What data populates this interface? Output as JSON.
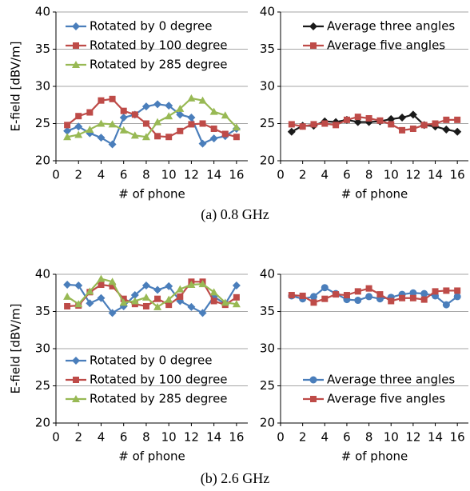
{
  "chart_data": [
    {
      "type": "line",
      "xlabel": "# of phone",
      "ylabel": "E-field [dBV/m]",
      "x": [
        1,
        2,
        3,
        4,
        5,
        6,
        7,
        8,
        9,
        10,
        11,
        12,
        13,
        14,
        15,
        16
      ],
      "xlim": [
        0,
        17
      ],
      "ylim": [
        20,
        40
      ],
      "xticks": [
        0,
        2,
        4,
        6,
        8,
        10,
        12,
        14,
        16
      ],
      "yticks": [
        20,
        25,
        30,
        35,
        40
      ],
      "grid": true,
      "legend": "upper left",
      "series": [
        {
          "name": "Rotated by 0 degree",
          "color": "#4a7ebb",
          "marker": "diamond",
          "values": [
            24.0,
            24.6,
            23.7,
            23.1,
            22.2,
            25.8,
            26.2,
            27.3,
            27.6,
            27.4,
            26.2,
            25.8,
            22.3,
            23.0,
            23.3,
            24.3
          ]
        },
        {
          "name": "Rotated by 100 degree",
          "color": "#be4b48",
          "marker": "square",
          "values": [
            24.8,
            26.0,
            26.5,
            28.1,
            28.3,
            26.7,
            26.2,
            25.0,
            23.3,
            23.2,
            24.0,
            24.9,
            25.0,
            24.3,
            23.6,
            23.2
          ]
        },
        {
          "name": "Rotated by 285 degree",
          "color": "#98b954",
          "marker": "triangle",
          "values": [
            23.2,
            23.5,
            24.2,
            25.0,
            24.9,
            24.1,
            23.4,
            23.2,
            25.2,
            26.0,
            27.0,
            28.4,
            28.1,
            26.6,
            26.1,
            24.5
          ]
        }
      ]
    },
    {
      "type": "line",
      "xlabel": "# of phone",
      "x": [
        1,
        2,
        3,
        4,
        5,
        6,
        7,
        8,
        9,
        10,
        11,
        12,
        13,
        14,
        15,
        16
      ],
      "xlim": [
        0,
        17
      ],
      "ylim": [
        20,
        40
      ],
      "xticks": [
        0,
        2,
        4,
        6,
        8,
        10,
        12,
        14,
        16
      ],
      "yticks": [
        20,
        25,
        30,
        35,
        40
      ],
      "grid": true,
      "legend": "upper right",
      "series": [
        {
          "name": "Average three angles",
          "color": "#1a1a1a",
          "marker": "diamond",
          "values": [
            23.9,
            24.7,
            24.7,
            25.3,
            25.2,
            25.5,
            25.2,
            25.2,
            25.3,
            25.6,
            25.8,
            26.2,
            24.8,
            24.6,
            24.2,
            23.9
          ]
        },
        {
          "name": "Average five angles",
          "color": "#be4b48",
          "marker": "square",
          "values": [
            24.9,
            24.6,
            24.9,
            25.0,
            24.8,
            25.5,
            25.9,
            25.7,
            25.4,
            24.9,
            24.1,
            24.3,
            24.8,
            25.0,
            25.5,
            25.5
          ]
        }
      ]
    },
    {
      "type": "line",
      "xlabel": "# of phone",
      "ylabel": "E-field [dBV/m]",
      "x": [
        1,
        2,
        3,
        4,
        5,
        6,
        7,
        8,
        9,
        10,
        11,
        12,
        13,
        14,
        15,
        16
      ],
      "xlim": [
        0,
        17
      ],
      "ylim": [
        20,
        40
      ],
      "xticks": [
        0,
        2,
        4,
        6,
        8,
        10,
        12,
        14,
        16
      ],
      "yticks": [
        20,
        25,
        30,
        35,
        40
      ],
      "grid": true,
      "legend": "lower left",
      "series": [
        {
          "name": "Rotated by 0 degree",
          "color": "#4a7ebb",
          "marker": "diamond",
          "values": [
            38.6,
            38.5,
            36.1,
            36.8,
            34.8,
            35.7,
            37.2,
            38.5,
            37.9,
            38.4,
            36.4,
            35.6,
            34.8,
            37.0,
            36.0,
            38.5
          ]
        },
        {
          "name": "Rotated by 100 degree",
          "color": "#be4b48",
          "marker": "square",
          "values": [
            35.7,
            35.8,
            37.6,
            38.6,
            38.4,
            36.7,
            36.0,
            35.7,
            36.7,
            35.9,
            37.0,
            39.0,
            39.0,
            36.4,
            35.9,
            36.9
          ]
        },
        {
          "name": "Rotated by 285 degree",
          "color": "#98b954",
          "marker": "triangle",
          "values": [
            37.0,
            36.0,
            37.7,
            39.4,
            39.0,
            36.2,
            36.4,
            36.9,
            35.6,
            36.6,
            38.0,
            38.6,
            38.7,
            37.6,
            36.2,
            36.0
          ]
        }
      ]
    },
    {
      "type": "line",
      "xlabel": "# of phone",
      "x": [
        1,
        2,
        3,
        4,
        5,
        6,
        7,
        8,
        9,
        10,
        11,
        12,
        13,
        14,
        15,
        16
      ],
      "xlim": [
        0,
        17
      ],
      "ylim": [
        20,
        40
      ],
      "xticks": [
        0,
        2,
        4,
        6,
        8,
        10,
        12,
        14,
        16
      ],
      "yticks": [
        20,
        25,
        30,
        35,
        40
      ],
      "grid": true,
      "legend": "lower right",
      "series": [
        {
          "name": "Average three angles",
          "color": "#4a7ebb",
          "marker": "circle",
          "values": [
            37.1,
            36.7,
            37.0,
            38.2,
            37.4,
            36.6,
            36.5,
            37.0,
            36.7,
            36.9,
            37.3,
            37.5,
            37.4,
            37.1,
            35.9,
            37.0
          ]
        },
        {
          "name": "Average five angles",
          "color": "#be4b48",
          "marker": "square",
          "values": [
            37.2,
            37.1,
            36.2,
            36.7,
            37.3,
            37.2,
            37.7,
            38.1,
            37.3,
            36.4,
            36.8,
            36.8,
            36.6,
            37.7,
            37.8,
            37.8
          ]
        }
      ]
    }
  ],
  "captions": [
    "(a) 0.8 GHz",
    "(b) 2.6 GHz"
  ]
}
